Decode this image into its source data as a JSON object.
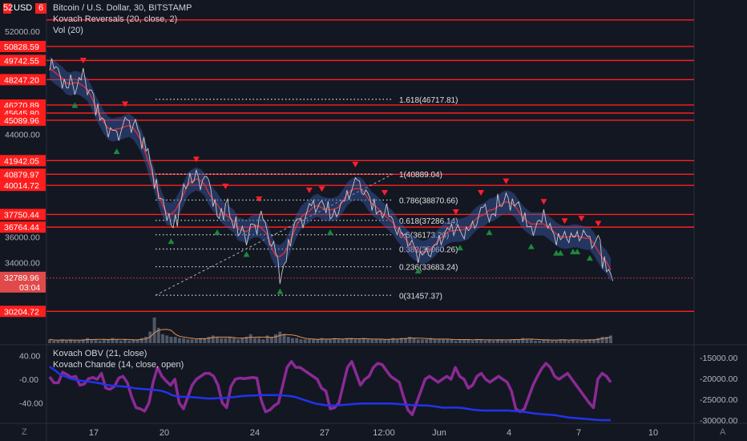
{
  "header": {
    "symbol_title": "Bitcoin / U.S. Dollar, 30, BITSTAMP",
    "indicator_1": "Kovach Reversals (20, close, 2)",
    "indicator_2": "Vol (20)"
  },
  "currency_selector": {
    "label": "USD",
    "left_badge": "52",
    "right_badge": "6"
  },
  "price_scale": {
    "min": 29600,
    "max": 53200,
    "ticks": [
      "52000.00",
      "44000.00",
      "36000.00",
      "34000.00"
    ],
    "current_price": "32789.96",
    "countdown": "03:04"
  },
  "chart_data": {
    "type": "line",
    "title": "Bitcoin / U.S. Dollar, 30, BITSTAMP",
    "xlabel": "",
    "ylabel": "",
    "ylim": [
      29600,
      53200
    ],
    "x_ticks": [
      "17",
      "20",
      "24",
      "27",
      "12:00",
      "Jun",
      "4",
      "7",
      "10"
    ],
    "series": [
      {
        "values": [
          49500,
          49200,
          48800,
          48000,
          47600,
          48200,
          47400,
          48300,
          48600,
          47300,
          47200,
          46000,
          45200,
          44800,
          44200,
          44300,
          43800,
          44500,
          45200,
          44500,
          45000,
          44200,
          43400,
          42800,
          41500,
          40200,
          39000,
          38500,
          37600,
          36800,
          37200,
          38800,
          39900,
          40600,
          40300,
          40900,
          40100,
          40700,
          40000,
          38700,
          37500,
          37700,
          38800,
          37400,
          37200,
          36200,
          36500,
          35800,
          37000,
          36500,
          37800,
          37200,
          35800,
          35500,
          34500,
          32900,
          34000,
          35500,
          36800,
          37400,
          37000,
          37800,
          38500,
          38300,
          38500,
          38600,
          38400,
          37500,
          37800,
          38300,
          38800,
          39200,
          39800,
          40500,
          39800,
          39500,
          39200,
          38600,
          37900,
          37700,
          38300,
          37600,
          36900,
          36500,
          36200,
          35700,
          35600,
          35100,
          34500,
          34700,
          34800,
          34900,
          35400,
          35700,
          36200,
          36600,
          36500,
          36800,
          36300,
          36400,
          36600,
          36900,
          37400,
          38300,
          38100,
          37500,
          37700,
          38800,
          38600,
          39200,
          38600,
          38500,
          38400,
          37600,
          36800,
          36400,
          37000,
          37200,
          37600,
          36900,
          36300,
          35900,
          35900,
          36100,
          36000,
          36000,
          36000,
          36300,
          36100,
          35500,
          35600,
          35900,
          34100,
          33400,
          32800
        ]
      }
    ],
    "resistance_levels": [
      {
        "price": 52900,
        "label": "52"
      },
      {
        "price": 50828.59,
        "label": "50828.59"
      },
      {
        "price": 49742.55,
        "label": "49742.55"
      },
      {
        "price": 48247.2,
        "label": "48247.20"
      },
      {
        "price": 46270.89,
        "label": "46270.89"
      },
      {
        "price": 45645.8,
        "label": "45645.80"
      },
      {
        "price": 45089.96,
        "label": "45089.96"
      },
      {
        "price": 41942.05,
        "label": "41942.05"
      },
      {
        "price": 40879.97,
        "label": "40879.97"
      },
      {
        "price": 40014.72,
        "label": "40014.72"
      },
      {
        "price": 37750.44,
        "label": "37750.44"
      },
      {
        "price": 36764.44,
        "label": "36764.44"
      },
      {
        "price": 30204.72,
        "label": "30204.72"
      }
    ],
    "fibonacci": [
      {
        "ratio": "1.618",
        "price": 46717.81,
        "label": "1.618(46717.81)"
      },
      {
        "ratio": "1",
        "price": 40889.04,
        "label": "1(40889.04)"
      },
      {
        "ratio": "0.786",
        "price": 38870.66,
        "label": "0.786(38870.66)"
      },
      {
        "ratio": "0.618",
        "price": 37286.14,
        "label": "0.618(37286.14)"
      },
      {
        "ratio": "0.5",
        "price": 36173.2,
        "label": "0.5(36173.20)"
      },
      {
        "ratio": "0.382",
        "price": 35060.26,
        "label": "0.382(35060.26)"
      },
      {
        "ratio": "0.236",
        "price": 33683.24,
        "label": "0.236(33683.24)"
      },
      {
        "ratio": "0",
        "price": 31457.37,
        "label": "0(31457.37)"
      }
    ],
    "volume": [
      3,
      2,
      2,
      3,
      2,
      3,
      2,
      2,
      3,
      4,
      3,
      3,
      2,
      3,
      3,
      4,
      3,
      2,
      3,
      2,
      3,
      3,
      4,
      5,
      9,
      20,
      12,
      7,
      6,
      5,
      5,
      4,
      4,
      3,
      3,
      3,
      4,
      4,
      5,
      6,
      5,
      4,
      4,
      5,
      4,
      3,
      4,
      5,
      7,
      4,
      4,
      3,
      6,
      5,
      7,
      9,
      7,
      5,
      4,
      4,
      3,
      3,
      3,
      3,
      3,
      4,
      3,
      3,
      4,
      3,
      3,
      4,
      4,
      3,
      3,
      4,
      3,
      3,
      3,
      3,
      3,
      3,
      4,
      3,
      4,
      4,
      5,
      4,
      3,
      3,
      3,
      4,
      3,
      3,
      3,
      3,
      3,
      2,
      3,
      3,
      3,
      2,
      3,
      3,
      2,
      3,
      2,
      3,
      3,
      2,
      3,
      3,
      3,
      4,
      3,
      3,
      2,
      2,
      3,
      3,
      2,
      2,
      3,
      3,
      2,
      3,
      2,
      2,
      3,
      3,
      3,
      4,
      5,
      5,
      6
    ]
  },
  "oscillator": {
    "legend_1": "Kovach OBV (21, close)",
    "legend_2": "Kovach Chande (14, close, open)",
    "left_ticks": [
      "40.00",
      "-0.00",
      "-40.00"
    ],
    "right_ticks": [
      "-15000.00",
      "-20000.00",
      "-25000.00",
      "-30000.00"
    ],
    "chande": [
      4,
      -6,
      -6,
      12,
      8,
      3,
      5,
      -10,
      -8,
      1,
      3,
      0,
      10,
      -15,
      -17,
      -12,
      2,
      5,
      -6,
      -30,
      -48,
      -50,
      -54,
      -40,
      -4,
      20,
      5,
      -3,
      -10,
      0,
      -40,
      -50,
      -30,
      -10,
      0,
      5,
      10,
      10,
      5,
      -10,
      -40,
      -48,
      -12,
      0,
      2,
      1,
      2,
      3,
      2,
      -35,
      -55,
      -52,
      -45,
      -40,
      -10,
      20,
      30,
      20,
      20,
      15,
      10,
      5,
      0,
      -15,
      -20,
      -50,
      -48,
      -40,
      -10,
      20,
      30,
      10,
      -10,
      0,
      5,
      20,
      27,
      25,
      15,
      5,
      0,
      -5,
      -30,
      -52,
      -60,
      -40,
      -20,
      0,
      5,
      0,
      -5,
      0,
      5,
      0,
      20,
      5,
      0,
      -15,
      -10,
      5,
      10,
      0,
      -5,
      0,
      5,
      0,
      -5,
      -20,
      -50,
      -55,
      -50,
      -30,
      -10,
      5,
      18,
      27,
      20,
      5,
      0,
      5,
      10,
      0,
      -10,
      -20,
      -30,
      -40,
      -48,
      0,
      10,
      5,
      -5
    ],
    "obv": [
      -17200,
      -18000,
      -19000,
      -19500,
      -20000,
      -20300,
      -20500,
      -20700,
      -20800,
      -21000,
      -21200,
      -21500,
      -21700,
      -21800,
      -21900,
      -22000,
      -22200,
      -22400,
      -22500,
      -22600,
      -22700,
      -22800,
      -23000,
      -23400,
      -24000,
      -24300,
      -24400,
      -24400,
      -24500,
      -24600,
      -24700,
      -24800,
      -24800,
      -24700,
      -24700,
      -24600,
      -24500,
      -24300,
      -24200,
      -24100,
      -24100,
      -24000,
      -24000,
      -24000,
      -24000,
      -24000,
      -24100,
      -24200,
      -24400,
      -24800,
      -25200,
      -25600,
      -26000,
      -26200,
      -26400,
      -26500,
      -26500,
      -26400,
      -26300,
      -26200,
      -26100,
      -26000,
      -26000,
      -26000,
      -26000,
      -26000,
      -26000,
      -26000,
      -26100,
      -26200,
      -26300,
      -26400,
      -26400,
      -26500,
      -26500,
      -26600,
      -26800,
      -27000,
      -27000,
      -27000,
      -27000,
      -27100,
      -27300,
      -27500,
      -27600,
      -27700,
      -27700,
      -27700,
      -27700,
      -27700,
      -27700,
      -27800,
      -27900,
      -28000,
      -28200,
      -28400,
      -28500,
      -28600,
      -28700,
      -28800,
      -29000,
      -29200,
      -29400,
      -29500,
      -29600,
      -29700,
      -29800,
      -29900,
      -30000,
      -30000,
      -30000
    ]
  },
  "colors": {
    "background": "#131722",
    "resistance": "#ff1e1e",
    "price_line": "#c8c8c8",
    "kovach_band": "#3a5aaa",
    "kovach_line": "#e8323c",
    "sell_marker": "#ff1e2d",
    "buy_marker": "#1a8a3a",
    "volume": "#505767",
    "volume_ma": "#e0914e",
    "chande": "#8b2a94",
    "obv": "#2233ee"
  },
  "toolbar": {
    "zoom_label": "Z",
    "auto_label": "A"
  }
}
